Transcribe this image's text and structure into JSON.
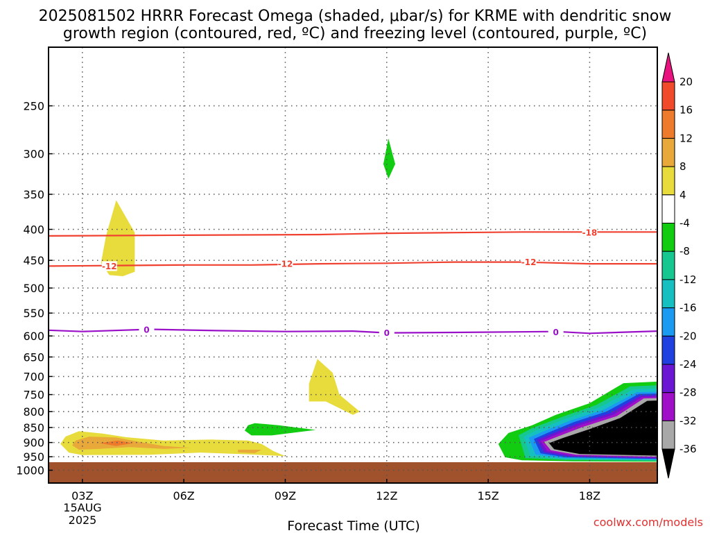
{
  "chart_data": {
    "type": "heatmap",
    "title_line1": "2025081502 HRRR Forecast Omega (shaded, μbar/s) for KRME with dendritic snow",
    "title_line2": "growth region (contoured, red, ºC) and freezing level (contoured, purple, ºC)",
    "xlabel": "Forecast Time (UTC)",
    "date_line1": "15AUG",
    "date_line2": "2025",
    "credit": "coolwx.com/models",
    "y_axis": {
      "label": "",
      "scale": "log-pressure (hPa), inverted",
      "range_hPa": [
        200,
        1050
      ],
      "tick_values": [
        250,
        300,
        350,
        400,
        450,
        500,
        550,
        600,
        650,
        700,
        750,
        800,
        850,
        900,
        950,
        1000
      ],
      "tick_labels": [
        "250",
        "300",
        "350",
        "400",
        "450",
        "500",
        "550",
        "600",
        "650",
        "700",
        "750",
        "800",
        "850",
        "900",
        "950",
        "1000"
      ]
    },
    "x_axis": {
      "range_hours_utc": [
        2,
        20
      ],
      "tick_hours": [
        3,
        6,
        9,
        12,
        15,
        18
      ],
      "tick_labels": [
        "03Z",
        "06Z",
        "09Z",
        "12Z",
        "15Z",
        "18Z"
      ]
    },
    "grid": true,
    "colorbar": {
      "units": "μbar/s",
      "position": "right",
      "labels": [
        "20",
        "16",
        "12",
        "8",
        "4",
        "-4",
        "-8",
        "-12",
        "-16",
        "-20",
        "-24",
        "-28",
        "-32",
        "-36"
      ],
      "levels": [
        {
          "min": 20,
          "max": null,
          "color": "#e8137f"
        },
        {
          "min": 16,
          "max": 20,
          "color": "#f04a2a"
        },
        {
          "min": 12,
          "max": 16,
          "color": "#ee7a2c"
        },
        {
          "min": 8,
          "max": 12,
          "color": "#e8a83a"
        },
        {
          "min": 4,
          "max": 8,
          "color": "#e8dc3c"
        },
        {
          "min": -4,
          "max": 4,
          "color": "#ffffff"
        },
        {
          "min": -8,
          "max": -4,
          "color": "#11cc11"
        },
        {
          "min": -12,
          "max": -8,
          "color": "#16c890"
        },
        {
          "min": -16,
          "max": -12,
          "color": "#17c0c0"
        },
        {
          "min": -20,
          "max": -16,
          "color": "#1a9af0"
        },
        {
          "min": -24,
          "max": -20,
          "color": "#2040e0"
        },
        {
          "min": -28,
          "max": -24,
          "color": "#6a16d2"
        },
        {
          "min": -32,
          "max": -28,
          "color": "#a010c8"
        },
        {
          "min": -36,
          "max": -32,
          "color": "#a8a8a8"
        },
        {
          "min": null,
          "max": -36,
          "color": "#000000"
        }
      ]
    },
    "ground_color": "#a0522d",
    "ground_top_hPa": 970,
    "contours": [
      {
        "name": "-18",
        "color": "#f04030",
        "points": [
          [
            2,
            410
          ],
          [
            6,
            409
          ],
          [
            10,
            408
          ],
          [
            12,
            406
          ],
          [
            14,
            405
          ],
          [
            16,
            404
          ],
          [
            18,
            404
          ],
          [
            20,
            404
          ]
        ],
        "label_at": [
          [
            18,
            405
          ]
        ]
      },
      {
        "name": "-12",
        "color": "#f04030",
        "points": [
          [
            2,
            460
          ],
          [
            4,
            459
          ],
          [
            6,
            458
          ],
          [
            8,
            458
          ],
          [
            10,
            456
          ],
          [
            12,
            455
          ],
          [
            14,
            453
          ],
          [
            16,
            453
          ],
          [
            18,
            456
          ],
          [
            20,
            456
          ]
        ],
        "label_at": [
          [
            3.8,
            460
          ],
          [
            9,
            456
          ],
          [
            16.2,
            453
          ]
        ]
      },
      {
        "name": "0",
        "color": "#9a10c8",
        "points": [
          [
            2,
            587
          ],
          [
            3,
            590
          ],
          [
            5,
            585
          ],
          [
            7,
            588
          ],
          [
            9,
            590
          ],
          [
            11,
            589
          ],
          [
            12,
            593
          ],
          [
            14,
            592
          ],
          [
            17,
            590
          ],
          [
            18,
            594
          ],
          [
            20,
            589
          ]
        ],
        "label_at": [
          [
            4.9,
            586
          ],
          [
            12,
            593
          ],
          [
            17,
            591
          ]
        ]
      }
    ],
    "shaded_regions": [
      {
        "value_class": "4 to 8",
        "color": "#e8dc3c",
        "points": [
          [
            3.55,
            455
          ],
          [
            3.7,
            410
          ],
          [
            4.0,
            358
          ],
          [
            4.55,
            405
          ],
          [
            4.55,
            470
          ],
          [
            4.2,
            478
          ],
          [
            3.8,
            476
          ]
        ]
      },
      {
        "value_class": "4 to 8",
        "color": "#e8dc3c",
        "points": [
          [
            9.7,
            720
          ],
          [
            9.95,
            655
          ],
          [
            10.4,
            690
          ],
          [
            10.6,
            750
          ],
          [
            11.2,
            800
          ],
          [
            11.0,
            810
          ],
          [
            10.2,
            770
          ],
          [
            9.7,
            770
          ]
        ]
      },
      {
        "value_class": "4 to 8",
        "color": "#e8dc3c",
        "points": [
          [
            2.5,
            880
          ],
          [
            2.9,
            862
          ],
          [
            3.6,
            870
          ],
          [
            4.3,
            882
          ],
          [
            5.4,
            893
          ],
          [
            6.8,
            890
          ],
          [
            7.9,
            893
          ],
          [
            8.3,
            905
          ],
          [
            8.65,
            930
          ],
          [
            9.0,
            948
          ],
          [
            8.0,
            942
          ],
          [
            6.5,
            935
          ],
          [
            5.0,
            943
          ],
          [
            3.0,
            944
          ],
          [
            2.6,
            935
          ],
          [
            2.35,
            905
          ]
        ]
      },
      {
        "value_class": "8 to 12",
        "color": "#e8a83a",
        "points": [
          [
            2.8,
            893
          ],
          [
            3.2,
            880
          ],
          [
            4.0,
            883
          ],
          [
            4.7,
            898
          ],
          [
            5.4,
            912
          ],
          [
            6.2,
            918
          ],
          [
            5.4,
            922
          ],
          [
            4.4,
            916
          ],
          [
            3.5,
            922
          ],
          [
            2.9,
            925
          ],
          [
            2.7,
            910
          ]
        ]
      },
      {
        "value_class": "8 to 12",
        "color": "#e8a83a",
        "points": [
          [
            7.6,
            925
          ],
          [
            8.3,
            925
          ],
          [
            8.1,
            937
          ],
          [
            7.6,
            934
          ]
        ]
      },
      {
        "value_class": "12 to 16",
        "color": "#ee7a2c",
        "points": [
          [
            3.5,
            902
          ],
          [
            4.05,
            893
          ],
          [
            4.5,
            902
          ],
          [
            4.0,
            912
          ]
        ]
      },
      {
        "value_class": "-8 to -4",
        "color": "#11cc11",
        "points": [
          [
            11.9,
            312
          ],
          [
            12.05,
            283
          ],
          [
            12.25,
            312
          ],
          [
            12.05,
            330
          ]
        ]
      },
      {
        "value_class": "-8 to -4",
        "color": "#11cc11",
        "points": [
          [
            7.9,
            843
          ],
          [
            8.1,
            836
          ],
          [
            8.8,
            843
          ],
          [
            9.9,
            858
          ],
          [
            8.6,
            876
          ],
          [
            8.0,
            876
          ],
          [
            7.8,
            860
          ]
        ]
      },
      {
        "value_class": "-8 to -4",
        "color": "#11cc11",
        "points": [
          [
            15.3,
            905
          ],
          [
            15.6,
            868
          ],
          [
            16.3,
            843
          ],
          [
            17.0,
            810
          ],
          [
            18.0,
            775
          ],
          [
            19.0,
            718
          ],
          [
            20,
            714
          ],
          [
            20,
            968
          ],
          [
            17.5,
            967
          ],
          [
            16.0,
            963
          ],
          [
            15.5,
            952
          ]
        ]
      },
      {
        "value_class": "-12 to -8",
        "color": "#16c890",
        "points": [
          [
            15.9,
            875
          ],
          [
            16.3,
            852
          ],
          [
            17.2,
            816
          ],
          [
            18.2,
            780
          ],
          [
            19.2,
            727
          ],
          [
            20,
            724
          ],
          [
            20,
            966
          ],
          [
            17.3,
            962
          ],
          [
            16.1,
            955
          ]
        ]
      },
      {
        "value_class": "-16 to -12",
        "color": "#17c0c0",
        "points": [
          [
            16.05,
            880
          ],
          [
            16.45,
            858
          ],
          [
            17.3,
            822
          ],
          [
            18.3,
            787
          ],
          [
            19.3,
            735
          ],
          [
            20,
            733
          ],
          [
            20,
            963
          ],
          [
            17.2,
            958
          ],
          [
            16.25,
            948
          ]
        ]
      },
      {
        "value_class": "-20 to -16",
        "color": "#1a9af0",
        "points": [
          [
            16.2,
            884
          ],
          [
            16.6,
            864
          ],
          [
            17.4,
            829
          ],
          [
            18.4,
            795
          ],
          [
            19.4,
            743
          ],
          [
            20,
            742
          ],
          [
            20,
            960
          ],
          [
            17.2,
            955
          ],
          [
            16.4,
            942
          ]
        ]
      },
      {
        "value_class": "-24 to -20",
        "color": "#2040e0",
        "points": [
          [
            16.35,
            888
          ],
          [
            16.75,
            868
          ],
          [
            17.5,
            834
          ],
          [
            18.5,
            800
          ],
          [
            19.45,
            748
          ],
          [
            20,
            747
          ],
          [
            20,
            958
          ],
          [
            17.3,
            952
          ],
          [
            16.55,
            938
          ]
        ]
      },
      {
        "value_class": "-28 to -24",
        "color": "#6a16d2",
        "points": [
          [
            16.45,
            891
          ],
          [
            16.85,
            872
          ],
          [
            17.6,
            839
          ],
          [
            18.6,
            805
          ],
          [
            19.5,
            753
          ],
          [
            20,
            752
          ],
          [
            20,
            956
          ],
          [
            17.4,
            949
          ],
          [
            16.65,
            934
          ]
        ]
      },
      {
        "value_class": "-32 to -28",
        "color": "#a010c8",
        "points": [
          [
            16.55,
            895
          ],
          [
            16.95,
            876
          ],
          [
            17.7,
            843
          ],
          [
            18.7,
            810
          ],
          [
            19.55,
            757
          ],
          [
            20,
            756
          ],
          [
            20,
            953
          ],
          [
            17.5,
            946
          ],
          [
            16.75,
            930
          ]
        ]
      },
      {
        "value_class": "-36 to -32",
        "color": "#a8a8a8",
        "points": [
          [
            16.65,
            898
          ],
          [
            17.05,
            880
          ],
          [
            17.8,
            848
          ],
          [
            18.8,
            814
          ],
          [
            19.6,
            761
          ],
          [
            20,
            760
          ],
          [
            20,
            950
          ],
          [
            17.6,
            943
          ],
          [
            16.85,
            927
          ]
        ]
      },
      {
        "value_class": "< -36",
        "color": "#000000",
        "points": [
          [
            16.8,
            902
          ],
          [
            17.2,
            885
          ],
          [
            18.0,
            855
          ],
          [
            18.9,
            820
          ],
          [
            19.7,
            768
          ],
          [
            20,
            767
          ],
          [
            20,
            946
          ],
          [
            17.7,
            940
          ],
          [
            16.95,
            923
          ]
        ]
      }
    ]
  }
}
